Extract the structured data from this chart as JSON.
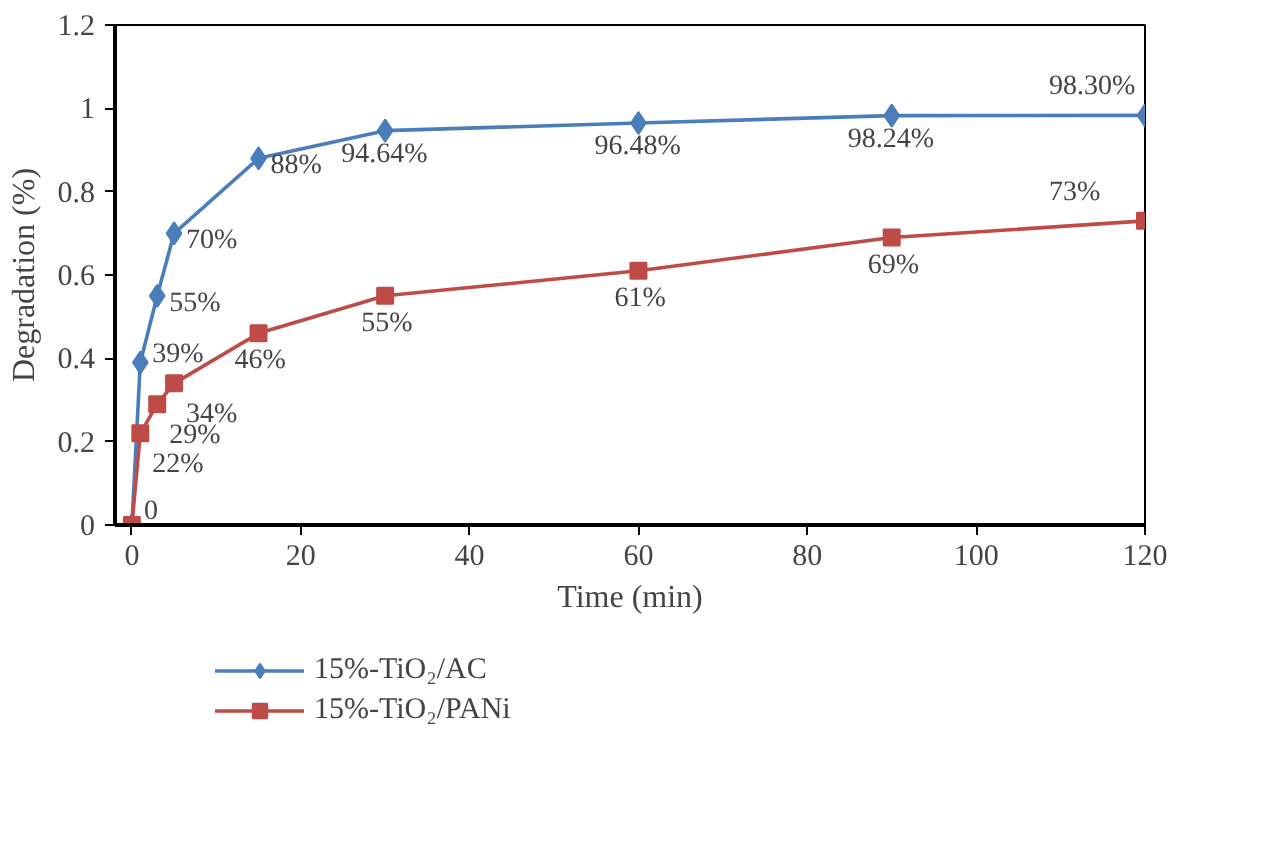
{
  "chart_data": {
    "type": "line",
    "xlabel": "Time (min)",
    "ylabel": "Degradation (%)",
    "xlim": [
      -2,
      120
    ],
    "xticks": [
      0,
      20,
      40,
      60,
      80,
      100,
      120
    ],
    "ylim": [
      0,
      1.2
    ],
    "yticks": [
      0,
      0.2,
      0.4,
      0.6,
      0.8,
      1,
      1.2
    ],
    "grid": false,
    "legend": "bottom",
    "line_style": "solid",
    "series": [
      {
        "name": "15%-TiO₂/AC",
        "color": "#4a7ebb",
        "marker": "diamond",
        "x": [
          0,
          1,
          3,
          5,
          15,
          30,
          60,
          90,
          120
        ],
        "values": [
          0,
          0.39,
          0.55,
          0.7,
          0.88,
          0.9464,
          0.9648,
          0.9824,
          0.983
        ],
        "value_labels": [
          null,
          "39%",
          "55%",
          "70%",
          "88%",
          "94.64%",
          "96.48%",
          "98.24%",
          "98.30%"
        ]
      },
      {
        "name": "15%-TiO₂/PANi",
        "color": "#be4b48",
        "marker": "square",
        "x": [
          0,
          1,
          3,
          5,
          15,
          30,
          60,
          90,
          120
        ],
        "values": [
          0,
          0.22,
          0.29,
          0.34,
          0.46,
          0.55,
          0.61,
          0.69,
          0.73
        ],
        "value_labels": [
          "0",
          "22%",
          "29%",
          "34%",
          "46%",
          "55%",
          "61%",
          "69%",
          "73%"
        ]
      }
    ]
  }
}
